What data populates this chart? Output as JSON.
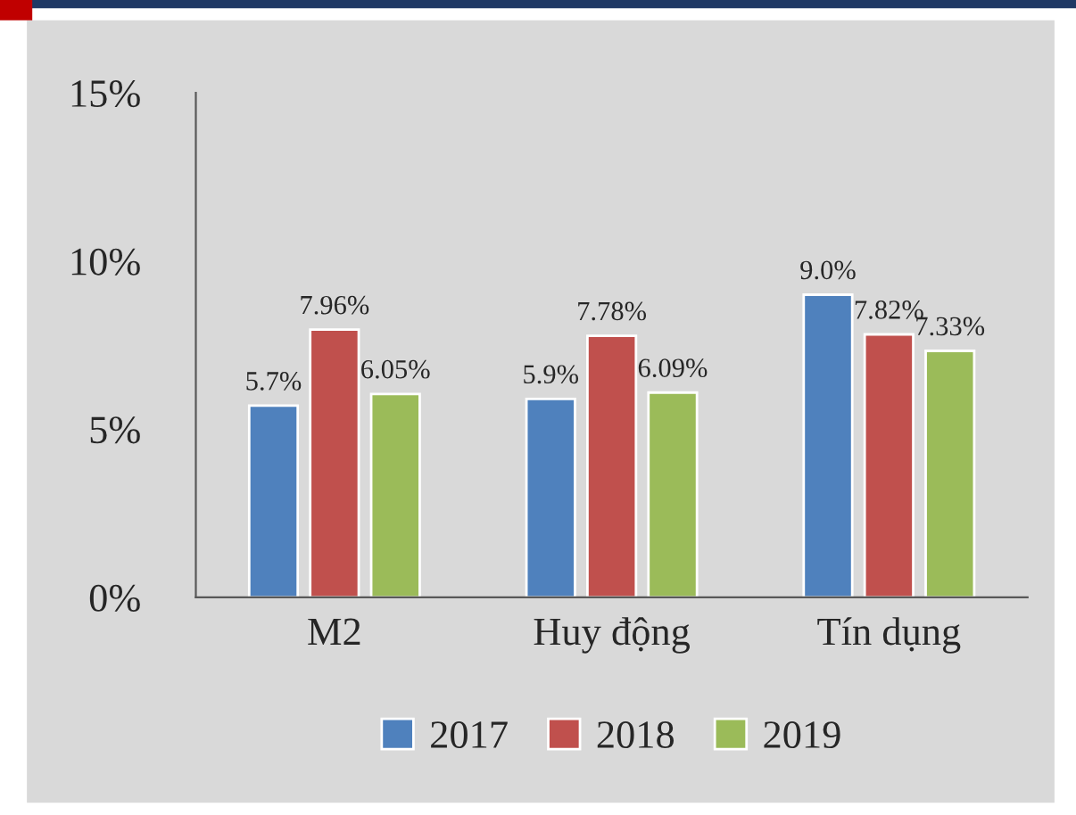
{
  "chart_data": {
    "type": "bar",
    "categories": [
      "M2",
      "Huy động",
      "Tín dụng"
    ],
    "series": [
      {
        "name": "2017",
        "color": "#4f81bd",
        "values": [
          5.7,
          5.9,
          9.0
        ],
        "value_labels": [
          "5.7%",
          "5.9%",
          "9.0%"
        ]
      },
      {
        "name": "2018",
        "color": "#c0504d",
        "values": [
          7.96,
          7.78,
          7.82
        ],
        "value_labels": [
          "7.96%",
          "7.78%",
          "7.82%"
        ]
      },
      {
        "name": "2019",
        "color": "#9bbb59",
        "values": [
          6.05,
          6.09,
          7.33
        ],
        "value_labels": [
          "6.05%",
          "6.09%",
          "7.33%"
        ]
      }
    ],
    "ylim": [
      0,
      15
    ],
    "yticks": [
      {
        "value": 0,
        "label": "0%"
      },
      {
        "value": 5,
        "label": "5%"
      },
      {
        "value": 10,
        "label": "10%"
      },
      {
        "value": 15,
        "label": "15%"
      }
    ],
    "grid": false,
    "legend": "bottom"
  }
}
